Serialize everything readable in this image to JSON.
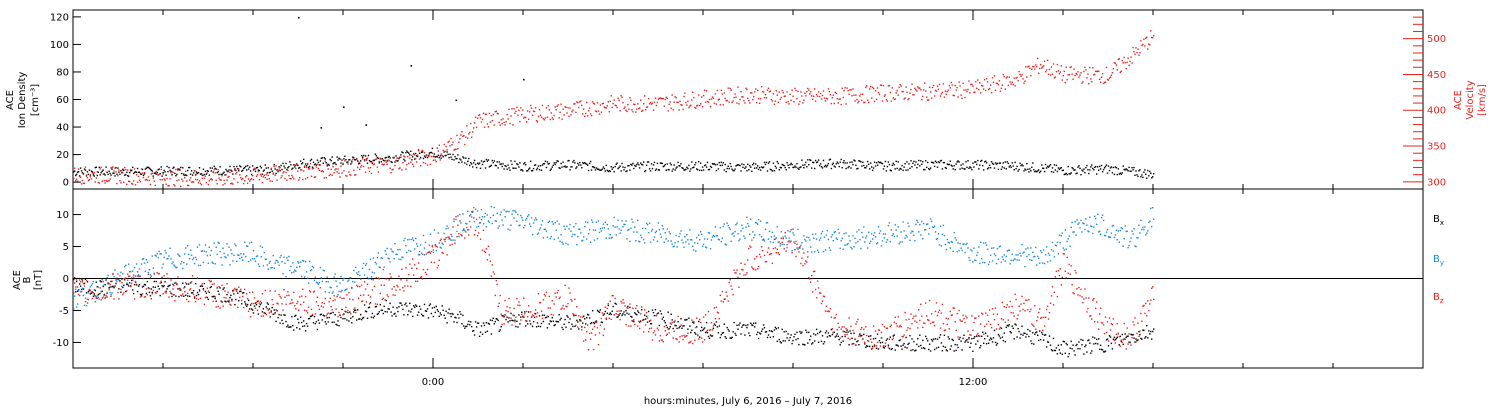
{
  "chart_data": [
    {
      "type": "scatter",
      "panel": "top",
      "x_unit": "hours relative to 00:00 July 7, 2016",
      "xlim": [
        -8.0,
        22.0
      ],
      "y_left": {
        "label_lines": [
          "ACE",
          "Ion Density",
          "[cm⁻³]"
        ],
        "ylim": [
          -5,
          125
        ],
        "ticks": [
          0,
          20,
          40,
          60,
          80,
          100,
          120
        ]
      },
      "y_right": {
        "label_lines": [
          "ACE",
          "Velocity",
          "[km/s]"
        ],
        "ylim": [
          290,
          540
        ],
        "ticks": [
          300,
          350,
          400,
          450,
          500
        ],
        "color": "#e8231e"
      },
      "series": [
        {
          "name": "Ion Density",
          "axis": "left",
          "color": "#000000",
          "x": [
            -8.0,
            -6.5,
            -5.0,
            -4.0,
            -3.5,
            -3.0,
            -2.0,
            -1.0,
            0.0,
            1.0,
            2.0,
            3.0,
            4.0,
            5.0,
            6.0,
            7.0,
            8.0,
            9.0,
            10.0,
            11.0,
            12.0,
            13.0,
            14.0,
            15.0,
            16.0
          ],
          "y": [
            8,
            8,
            9,
            9,
            10,
            14,
            16,
            18,
            22,
            14,
            12,
            13,
            11,
            12,
            12,
            11,
            13,
            14,
            12,
            13,
            13,
            12,
            9,
            10,
            6
          ]
        },
        {
          "name": "Velocity",
          "axis": "right",
          "color": "#e8231e",
          "x": [
            -8.0,
            -7.0,
            -6.0,
            -5.0,
            -4.0,
            -3.0,
            -2.0,
            -1.0,
            0.0,
            0.7,
            1.0,
            2.0,
            3.0,
            4.0,
            5.0,
            6.0,
            7.0,
            8.0,
            9.0,
            10.0,
            11.0,
            12.0,
            13.0,
            13.5,
            14.0,
            15.0,
            15.5,
            16.0
          ],
          "y": [
            310,
            310,
            307,
            306,
            308,
            315,
            320,
            325,
            337,
            365,
            385,
            395,
            400,
            410,
            410,
            417,
            423,
            420,
            420,
            425,
            427,
            430,
            445,
            465,
            450,
            450,
            475,
            505
          ]
        }
      ],
      "extra_points": {
        "series": "Ion Density",
        "x": [
          -3.0,
          -2.5,
          -2.0,
          -1.5,
          -0.5,
          0.5,
          2.0
        ],
        "y": [
          120,
          40,
          55,
          42,
          85,
          60,
          75
        ]
      }
    },
    {
      "type": "scatter",
      "panel": "bottom",
      "x_unit": "hours relative to 00:00 July 7, 2016",
      "xlim": [
        -8.0,
        22.0
      ],
      "y_left": {
        "label_lines": [
          "ACE",
          "B",
          "[nT]"
        ],
        "ylim": [
          -14,
          14
        ],
        "ticks": [
          -10,
          -5,
          0,
          5,
          10
        ]
      },
      "zero_line": 0,
      "series": [
        {
          "name": "Bx",
          "color": "#000000",
          "x": [
            -8.0,
            -7.5,
            -7.0,
            -6.0,
            -5.0,
            -4.5,
            -4.0,
            -3.0,
            -2.5,
            -2.0,
            -1.5,
            -1.0,
            0.0,
            0.5,
            1.0,
            2.0,
            3.0,
            4.0,
            5.0,
            6.0,
            7.0,
            8.0,
            9.0,
            10.0,
            11.0,
            12.0,
            13.0,
            14.0,
            14.5,
            15.0,
            15.5,
            16.0
          ],
          "y": [
            -1,
            -1.5,
            -1,
            -1.5,
            -2,
            -2.5,
            -4,
            -7,
            -6.5,
            -6,
            -5,
            -4.5,
            -5,
            -6,
            -8,
            -6,
            -7,
            -5,
            -6,
            -8,
            -8,
            -9,
            -9,
            -10,
            -10,
            -10,
            -8,
            -11,
            -10.5,
            -10,
            -9,
            -8
          ]
        },
        {
          "name": "By",
          "color": "#1c8ad8",
          "x": [
            -8.0,
            -7.5,
            -7.0,
            -6.0,
            -5.0,
            -4.5,
            -4.0,
            -3.5,
            -3.0,
            -2.5,
            -2.0,
            -1.5,
            -1.0,
            0.0,
            0.5,
            1.0,
            2.0,
            3.0,
            4.0,
            5.0,
            6.0,
            7.0,
            8.0,
            9.0,
            10.0,
            11.0,
            12.0,
            13.0,
            13.5,
            14.0,
            14.5,
            15.0,
            15.5,
            16.0
          ],
          "y": [
            -3,
            -2,
            0,
            3,
            4,
            4,
            4,
            2,
            2,
            0,
            -1,
            1,
            4,
            6,
            8,
            10,
            9,
            7,
            8,
            7,
            6,
            8,
            6,
            6,
            7,
            8,
            4,
            4,
            3,
            6,
            9,
            8,
            6,
            10
          ]
        },
        {
          "name": "Bz",
          "color": "#e8231e",
          "x": [
            -8.0,
            -7.5,
            -7.0,
            -6.0,
            -5.0,
            -4.0,
            -3.0,
            -2.0,
            -1.0,
            0.0,
            0.5,
            1.0,
            1.5,
            2.0,
            3.0,
            3.5,
            4.0,
            5.0,
            6.0,
            7.0,
            8.0,
            9.0,
            10.0,
            11.0,
            12.0,
            13.0,
            13.5,
            14.0,
            15.0,
            15.5,
            16.0
          ],
          "y": [
            -2,
            -2,
            -1,
            -1,
            -2,
            -4,
            -3,
            -4,
            -1,
            3,
            8,
            9,
            -5,
            -5,
            -3,
            -10,
            -4,
            -8,
            -8,
            3,
            6,
            -8,
            -9,
            -5,
            -8,
            -4,
            -7,
            2,
            -8,
            -9,
            -3
          ]
        }
      ],
      "legend": [
        {
          "text": "B",
          "sub": "x",
          "color": "#000000"
        },
        {
          "text": "B",
          "sub": "y",
          "color": "#1c8ad8"
        },
        {
          "text": "B",
          "sub": "z",
          "color": "#e8231e"
        }
      ]
    }
  ],
  "x_axis": {
    "tick_labels": [
      {
        "hour": 0,
        "text": "0:00"
      },
      {
        "hour": 12,
        "text": "12:00"
      }
    ],
    "minor_step_hours": 2,
    "label": "hours:minutes, July  6, 2016 – July  7, 2016"
  }
}
